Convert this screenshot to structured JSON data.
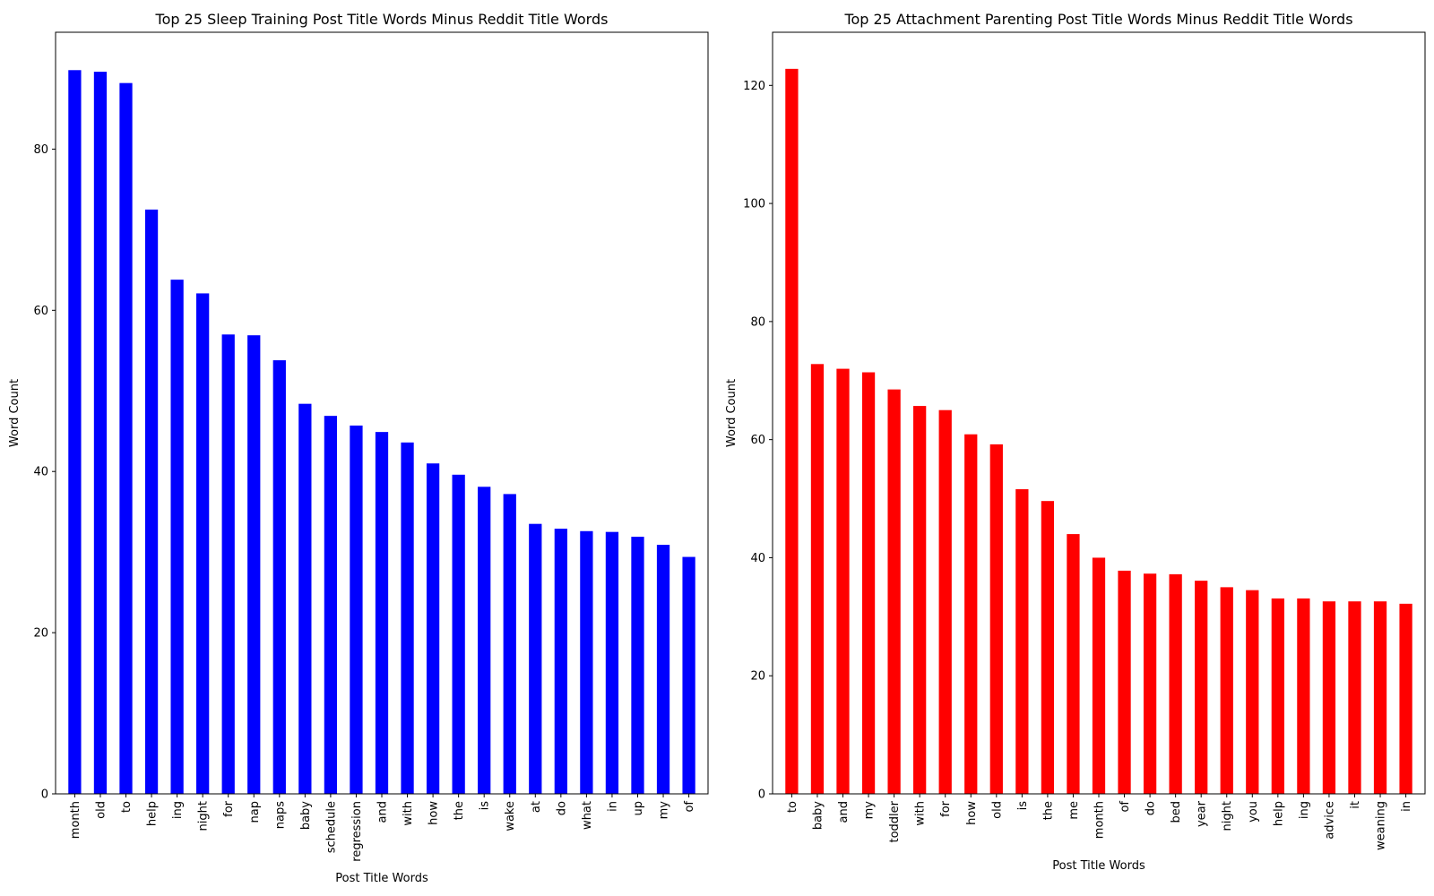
{
  "chart_data": [
    {
      "type": "bar",
      "title": "Top 25 Sleep Training Post Title Words Minus Reddit Title Words",
      "xlabel": "Post Title Words",
      "ylabel": "Word Count",
      "color": "#0000ff",
      "ylim": [
        0,
        94.5
      ],
      "yticks": [
        0,
        20,
        40,
        60,
        80
      ],
      "grid": false,
      "categories": [
        "month",
        "old",
        "to",
        "help",
        "ing",
        "night",
        "for",
        "nap",
        "naps",
        "baby",
        "schedule",
        "regression",
        "and",
        "with",
        "how",
        "the",
        "is",
        "wake",
        "at",
        "do",
        "what",
        "in",
        "up",
        "my",
        "of"
      ],
      "values": [
        89.8,
        89.6,
        88.2,
        72.5,
        63.8,
        62.1,
        57.0,
        56.9,
        53.8,
        48.4,
        46.9,
        45.7,
        44.9,
        43.6,
        41.0,
        39.6,
        38.1,
        37.2,
        33.5,
        32.9,
        32.6,
        32.5,
        31.9,
        30.9,
        29.4
      ]
    },
    {
      "type": "bar",
      "title": "Top 25 Attachment Parenting Post Title Words Minus Reddit Title Words",
      "xlabel": "Post Title Words",
      "ylabel": "Word Count",
      "color": "#ff0000",
      "ylim": [
        0,
        129
      ],
      "yticks": [
        0,
        20,
        40,
        60,
        80,
        100,
        120
      ],
      "grid": false,
      "categories": [
        "to",
        "baby",
        "and",
        "my",
        "toddler",
        "with",
        "for",
        "how",
        "old",
        "is",
        "the",
        "me",
        "month",
        "of",
        "do",
        "bed",
        "year",
        "night",
        "you",
        "help",
        "ing",
        "advice",
        "it",
        "weaning",
        "in"
      ],
      "values": [
        122.8,
        72.8,
        72.0,
        71.4,
        68.5,
        65.7,
        65.0,
        60.9,
        59.2,
        51.6,
        49.6,
        44.0,
        40.0,
        37.8,
        37.3,
        37.2,
        36.1,
        35.0,
        34.5,
        33.1,
        33.1,
        32.6,
        32.6,
        32.6,
        32.2
      ]
    }
  ]
}
